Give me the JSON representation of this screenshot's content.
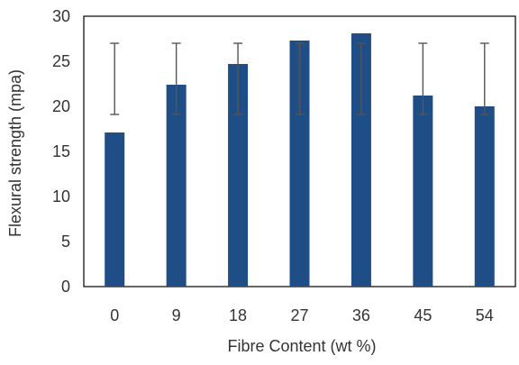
{
  "chart_data": {
    "type": "bar",
    "title": "",
    "xlabel": "Fibre Content (wt %)",
    "ylabel": "Flexural strength (mpa)",
    "categories": [
      "0",
      "9",
      "18",
      "27",
      "36",
      "45",
      "54"
    ],
    "values": [
      17.1,
      22.4,
      24.7,
      27.3,
      28.1,
      21.2,
      20.0
    ],
    "error_bars": {
      "low": [
        19.1,
        19.1,
        19.1,
        19.1,
        19.1,
        19.1,
        19.1
      ],
      "high": [
        27.0,
        27.0,
        27.0,
        27.0,
        27.0,
        27.0,
        27.0
      ]
    },
    "ylim": [
      0,
      30
    ],
    "yticks": [
      0,
      5,
      10,
      15,
      20,
      25,
      30
    ],
    "grid": false,
    "legend": "none",
    "bar_color": "#1f4e86",
    "error_bar_color": "#555555",
    "axis_color": "#000000"
  }
}
